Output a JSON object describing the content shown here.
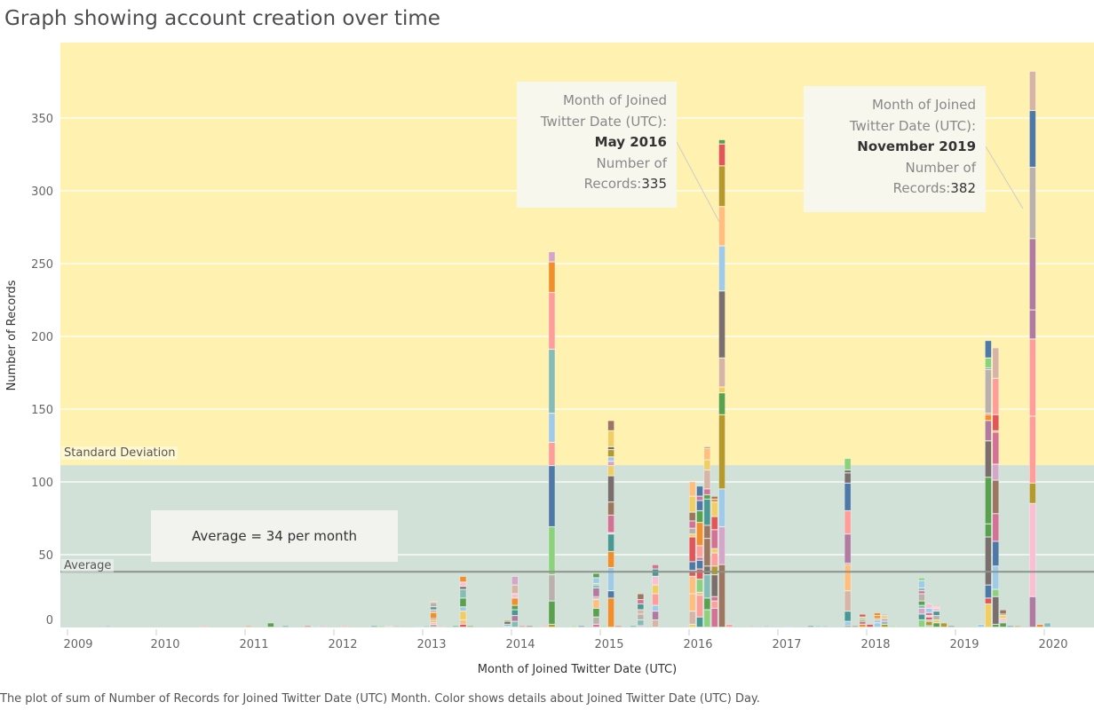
{
  "title": "Graph showing account creation over time",
  "caption": "The plot of sum of Number of Records for Joined Twitter Date (UTC) Month.  Color shows details about Joined Twitter Date (UTC) Day.",
  "reference": {
    "std_label": "Standard Deviation",
    "avg_label": "Average",
    "avg_note": "Average = 34 per month",
    "average_value": 34,
    "std_upper_value": 111.5
  },
  "tooltips": [
    {
      "l1": "Month of Joined",
      "l2": "Twitter Date (UTC):",
      "month": "May 2016",
      "l4": "Number of",
      "l5": "Records:",
      "value": "335"
    },
    {
      "l1": "Month of Joined",
      "l2": "Twitter Date (UTC):",
      "month": "November 2019",
      "l4": "Number of",
      "l5": "Records:",
      "value": "382"
    }
  ],
  "colors": {
    "band_upper": "#fff2b0",
    "band_lower": "#d1e1d7",
    "average_line": "#8a938c",
    "palette": [
      "#4e79a7",
      "#a0cbe8",
      "#f28e2b",
      "#ffbe7d",
      "#59a14f",
      "#8cd17d",
      "#b6992d",
      "#f1ce63",
      "#499894",
      "#86bcb6",
      "#e15759",
      "#ff9d9a",
      "#79706e",
      "#bab0ac",
      "#d37295",
      "#fabfd2",
      "#b07aa1",
      "#d4a6c8",
      "#9d7660",
      "#d7b5a6"
    ]
  },
  "chart_data": {
    "type": "bar",
    "stacked": true,
    "xlabel": "Month of Joined Twitter Date (UTC)",
    "ylabel": "Number of Records",
    "x_ticks": [
      "2009",
      "2010",
      "2011",
      "2012",
      "2013",
      "2014",
      "2015",
      "2016",
      "2017",
      "2018",
      "2019",
      "2020"
    ],
    "y_ticks": [
      0,
      50,
      100,
      150,
      200,
      250,
      300,
      350
    ],
    "ylim": [
      0,
      400
    ],
    "grid": true,
    "color_legend": "Joined Twitter Date (UTC) Day",
    "data": [
      {
        "month": "2009-06",
        "value": 1
      },
      {
        "month": "2010-07",
        "value": 1
      },
      {
        "month": "2011-01",
        "value": 1
      },
      {
        "month": "2011-04",
        "value": 3
      },
      {
        "month": "2011-06",
        "value": 1
      },
      {
        "month": "2011-09",
        "value": 1
      },
      {
        "month": "2011-10",
        "value": 1
      },
      {
        "month": "2011-11",
        "value": 1
      },
      {
        "month": "2012-02",
        "value": 1
      },
      {
        "month": "2012-06",
        "value": 1
      },
      {
        "month": "2012-07",
        "value": 1
      },
      {
        "month": "2012-08",
        "value": 1
      },
      {
        "month": "2012-09",
        "value": 1
      },
      {
        "month": "2012-12",
        "value": 1
      },
      {
        "month": "2013-01",
        "value": 1
      },
      {
        "month": "2013-02",
        "value": 18
      },
      {
        "month": "2013-03",
        "value": 1
      },
      {
        "month": "2013-05",
        "value": 1
      },
      {
        "month": "2013-06",
        "value": 35
      },
      {
        "month": "2013-07",
        "value": 1
      },
      {
        "month": "2013-12",
        "value": 5
      },
      {
        "month": "2014-01",
        "value": 35
      },
      {
        "month": "2014-02",
        "value": 1
      },
      {
        "month": "2014-03",
        "value": 1
      },
      {
        "month": "2014-05",
        "value": 1
      },
      {
        "month": "2014-06",
        "value": 258
      },
      {
        "month": "2014-09",
        "value": 1
      },
      {
        "month": "2014-10",
        "value": 1
      },
      {
        "month": "2014-12",
        "value": 37
      },
      {
        "month": "2015-01",
        "value": 1
      },
      {
        "month": "2015-02",
        "value": 142
      },
      {
        "month": "2015-03",
        "value": 1
      },
      {
        "month": "2015-05",
        "value": 1
      },
      {
        "month": "2015-06",
        "value": 23
      },
      {
        "month": "2015-08",
        "value": 43
      },
      {
        "month": "2016-01",
        "value": 100
      },
      {
        "month": "2016-02",
        "value": 97
      },
      {
        "month": "2016-03",
        "value": 124
      },
      {
        "month": "2016-04",
        "value": 90
      },
      {
        "month": "2016-05",
        "value": 335
      },
      {
        "month": "2016-06",
        "value": 2
      },
      {
        "month": "2016-09",
        "value": 1
      },
      {
        "month": "2016-11",
        "value": 1
      },
      {
        "month": "2017-02",
        "value": 1
      },
      {
        "month": "2017-05",
        "value": 1
      },
      {
        "month": "2017-06",
        "value": 1
      },
      {
        "month": "2017-07",
        "value": 1
      },
      {
        "month": "2017-10",
        "value": 116
      },
      {
        "month": "2017-11",
        "value": 1
      },
      {
        "month": "2017-12",
        "value": 9
      },
      {
        "month": "2018-01",
        "value": 2
      },
      {
        "month": "2018-02",
        "value": 10
      },
      {
        "month": "2018-03",
        "value": 9
      },
      {
        "month": "2018-04",
        "value": 1
      },
      {
        "month": "2018-08",
        "value": 34
      },
      {
        "month": "2018-09",
        "value": 16
      },
      {
        "month": "2018-10",
        "value": 15
      },
      {
        "month": "2018-11",
        "value": 3
      },
      {
        "month": "2018-12",
        "value": 1
      },
      {
        "month": "2019-04",
        "value": 2
      },
      {
        "month": "2019-05",
        "value": 197
      },
      {
        "month": "2019-06",
        "value": 192
      },
      {
        "month": "2019-07",
        "value": 12
      },
      {
        "month": "2019-08",
        "value": 1
      },
      {
        "month": "2019-09",
        "value": 1
      },
      {
        "month": "2019-11",
        "value": 382
      },
      {
        "month": "2019-12",
        "value": 2
      },
      {
        "month": "2020-01",
        "value": 3
      }
    ]
  }
}
